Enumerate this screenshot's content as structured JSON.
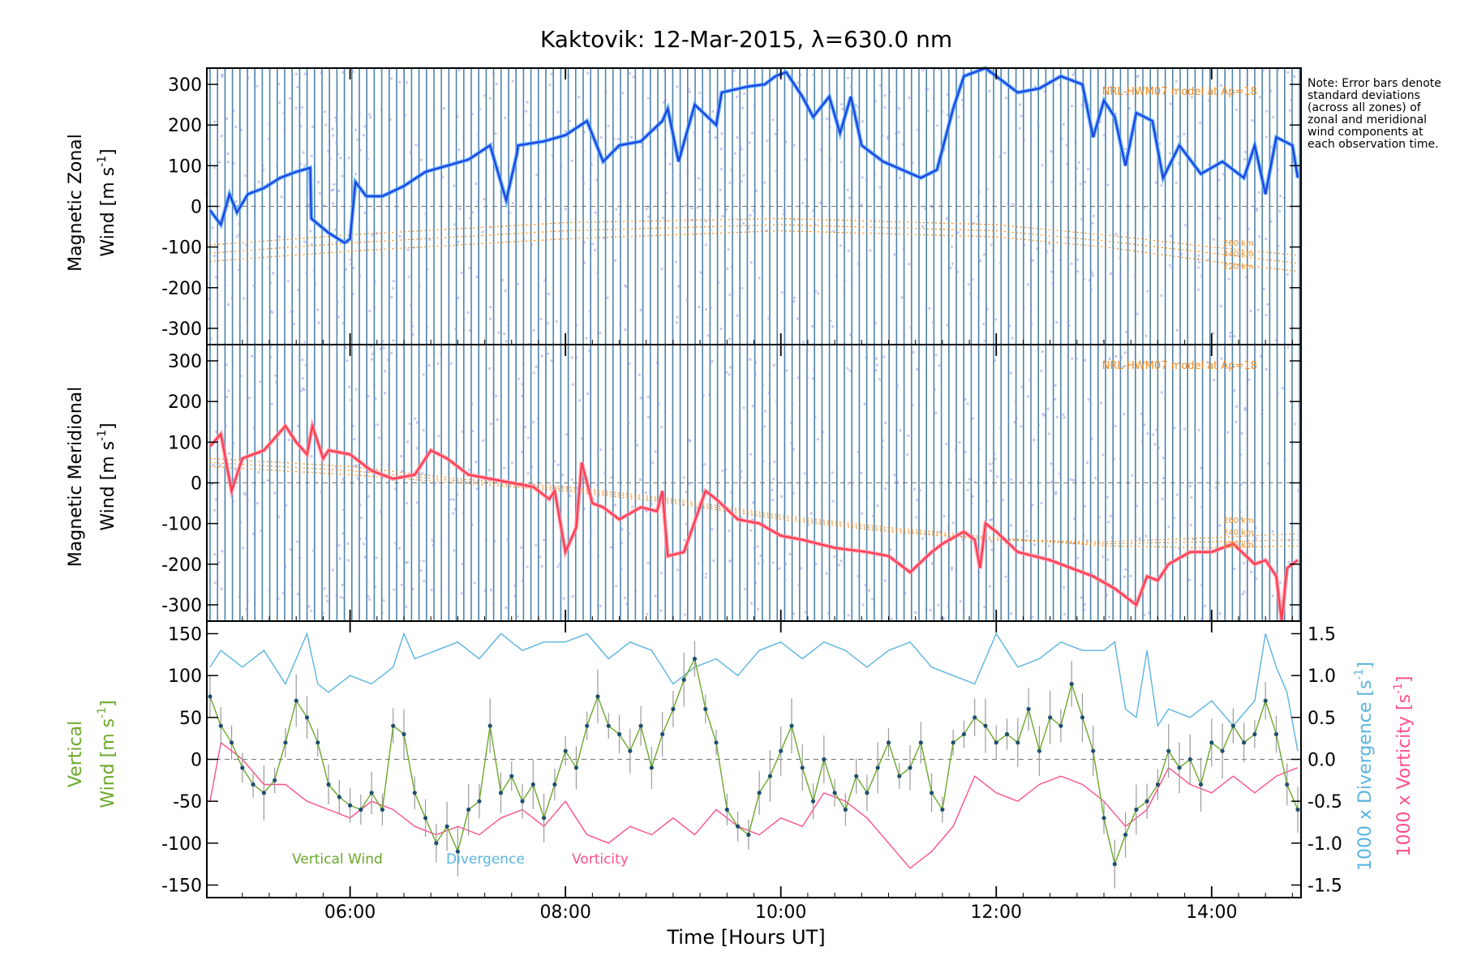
{
  "title": "Kaktovik: 12-Mar-2015, λ=630.0 nm",
  "note": "Note: Error bars denote standard deviations (across all zones) of zonal and meridional wind components at each observation time.",
  "colors": {
    "zonal": "#1f3fe0",
    "zonal_light": "#4aa8ff",
    "meridional": "#ff3b4f",
    "meridional_light": "#ff8fa3",
    "vertical": "#6aa829",
    "divergence": "#5ab4e0",
    "vorticity": "#ff4f8f",
    "model": "#f08a1c",
    "errorbar": "#9a9a9a",
    "dense_bars": "#2f6f9f"
  },
  "icons": {
    "vertical_marker": "dot-marker"
  },
  "chart_data": [
    {
      "type": "line",
      "panel": "zonal",
      "ylabel_line1": "Magnetic Zonal",
      "ylabel_line2": "Wind [m s",
      "ylabel_sup": "-1",
      "ylabel_end": "]",
      "yticks": [
        "-300",
        "-200",
        "-100",
        "0",
        "100",
        "200",
        "300"
      ],
      "ylim": [
        -340,
        340
      ],
      "xlim": [
        4.67,
        14.83
      ],
      "xticks": [
        6,
        8,
        10,
        12,
        14
      ],
      "model_label": "NRL-HWM07 model at Ap=18",
      "model_alt_labels": [
        "260 km",
        "240 km",
        "220 km"
      ],
      "model_curves": [
        {
          "name": "260 km",
          "x": [
            4.7,
            6,
            8,
            10,
            12,
            13,
            14,
            14.8
          ],
          "y": [
            -95,
            -70,
            -40,
            -30,
            -45,
            -70,
            -100,
            -120
          ]
        },
        {
          "name": "240 km",
          "x": [
            4.7,
            6,
            8,
            10,
            12,
            13,
            14,
            14.8
          ],
          "y": [
            -115,
            -90,
            -60,
            -45,
            -60,
            -85,
            -115,
            -140
          ]
        },
        {
          "name": "220 km",
          "x": [
            4.7,
            6,
            8,
            10,
            12,
            13,
            14,
            14.8
          ],
          "y": [
            -135,
            -110,
            -80,
            -60,
            -75,
            -100,
            -135,
            -160
          ]
        }
      ],
      "series": [
        {
          "name": "Zonal Wind",
          "x": [
            4.7,
            4.8,
            4.88,
            4.95,
            5.05,
            5.2,
            5.35,
            5.5,
            5.63,
            5.64,
            5.8,
            5.95,
            6.0,
            6.05,
            6.15,
            6.3,
            6.5,
            6.7,
            6.9,
            7.1,
            7.3,
            7.45,
            7.55,
            7.56,
            7.8,
            8.0,
            8.2,
            8.35,
            8.5,
            8.7,
            8.9,
            8.95,
            9.05,
            9.2,
            9.4,
            9.45,
            9.7,
            9.85,
            9.95,
            10.05,
            10.2,
            10.3,
            10.45,
            10.55,
            10.65,
            10.75,
            10.95,
            11.3,
            11.45,
            11.6,
            11.7,
            11.8,
            11.9,
            12.0,
            12.2,
            12.4,
            12.6,
            12.8,
            12.9,
            13.0,
            13.1,
            13.2,
            13.3,
            13.45,
            13.55,
            13.7,
            13.9,
            14.1,
            14.3,
            14.4,
            14.5,
            14.6,
            14.75,
            14.8
          ],
          "y": [
            -10,
            -45,
            30,
            -15,
            30,
            45,
            70,
            85,
            95,
            -30,
            -65,
            -90,
            -80,
            60,
            25,
            25,
            50,
            85,
            100,
            115,
            150,
            15,
            130,
            150,
            160,
            175,
            210,
            110,
            150,
            160,
            210,
            240,
            110,
            250,
            200,
            280,
            295,
            300,
            320,
            330,
            270,
            220,
            270,
            180,
            270,
            150,
            110,
            70,
            90,
            240,
            320,
            330,
            340,
            320,
            280,
            290,
            320,
            300,
            170,
            260,
            220,
            100,
            230,
            210,
            70,
            150,
            80,
            110,
            70,
            150,
            30,
            170,
            150,
            70
          ]
        }
      ]
    },
    {
      "type": "line",
      "panel": "meridional",
      "ylabel_line1": "Magnetic Meridional",
      "ylabel_line2": "Wind [m s",
      "ylabel_sup": "-1",
      "ylabel_end": "]",
      "yticks": [
        "-300",
        "-200",
        "-100",
        "0",
        "100",
        "200",
        "300"
      ],
      "ylim": [
        -340,
        340
      ],
      "xlim": [
        4.67,
        14.83
      ],
      "model_label": "NRL-HWM07 model at Ap=18",
      "model_alt_labels": [
        "260 km",
        "240 km",
        "220 km"
      ],
      "model_curves": [
        {
          "name": "260 km",
          "x": [
            4.7,
            6,
            7,
            8,
            9,
            10,
            11,
            12,
            13,
            14,
            14.8
          ],
          "y": [
            40,
            20,
            0,
            -20,
            -50,
            -90,
            -120,
            -140,
            -145,
            -135,
            -125
          ]
        },
        {
          "name": "240 km",
          "x": [
            4.7,
            6,
            7,
            8,
            9,
            10,
            11,
            12,
            13,
            14,
            14.8
          ],
          "y": [
            50,
            30,
            5,
            -15,
            -45,
            -85,
            -115,
            -140,
            -150,
            -145,
            -140
          ]
        },
        {
          "name": "220 km",
          "x": [
            4.7,
            6,
            7,
            8,
            9,
            10,
            11,
            12,
            13,
            14,
            14.8
          ],
          "y": [
            60,
            40,
            10,
            -10,
            -40,
            -80,
            -110,
            -135,
            -155,
            -160,
            -155
          ]
        }
      ],
      "series": [
        {
          "name": "Meridional Wind",
          "x": [
            4.7,
            4.8,
            4.9,
            5.0,
            5.2,
            5.4,
            5.5,
            5.6,
            5.65,
            5.75,
            5.8,
            6.0,
            6.2,
            6.4,
            6.6,
            6.75,
            6.9,
            7.1,
            7.3,
            7.5,
            7.7,
            7.85,
            7.9,
            8.0,
            8.1,
            8.15,
            8.25,
            8.35,
            8.5,
            8.7,
            8.85,
            8.9,
            8.95,
            9.1,
            9.3,
            9.4,
            9.6,
            9.8,
            10.0,
            10.2,
            10.5,
            10.8,
            11.0,
            11.2,
            11.4,
            11.5,
            11.7,
            11.8,
            11.85,
            11.9,
            12.0,
            12.2,
            12.5,
            12.7,
            12.9,
            13.1,
            13.3,
            13.4,
            13.5,
            13.6,
            13.8,
            14.0,
            14.2,
            14.4,
            14.5,
            14.6,
            14.65,
            14.7,
            14.8
          ],
          "y": [
            90,
            120,
            -20,
            60,
            80,
            140,
            100,
            70,
            140,
            60,
            80,
            70,
            30,
            10,
            20,
            80,
            60,
            20,
            10,
            0,
            -10,
            -40,
            -20,
            -170,
            -110,
            50,
            -50,
            -60,
            -90,
            -60,
            -70,
            -20,
            -180,
            -170,
            -20,
            -40,
            -90,
            -100,
            -130,
            -140,
            -160,
            -170,
            -180,
            -220,
            -170,
            -150,
            -120,
            -140,
            -210,
            -100,
            -120,
            -170,
            -190,
            -210,
            -230,
            -260,
            -300,
            -230,
            -240,
            -200,
            -170,
            -170,
            -150,
            -200,
            -190,
            -230,
            -340,
            -210,
            -190
          ]
        }
      ]
    },
    {
      "type": "line",
      "panel": "vertical",
      "ylabel_line1": "Vertical",
      "ylabel_line2": "Wind [m s",
      "ylabel_sup": "-1",
      "ylabel_end": "]",
      "yticks": [
        "-150",
        "-100",
        "-50",
        "0",
        "50",
        "100",
        "150"
      ],
      "ylim": [
        -165,
        165
      ],
      "xlim": [
        4.67,
        14.83
      ],
      "xtick_labels": [
        "06:00",
        "08:00",
        "10:00",
        "12:00",
        "14:00"
      ],
      "xlabel": "Time [Hours UT]",
      "right_axis": {
        "yticks": [
          "-1.5",
          "-1.0",
          "-0.5",
          "0.0",
          "0.5",
          "1.0",
          "1.5"
        ],
        "ylim": [
          -1.65,
          1.65
        ],
        "label_divergence": "1000 x Divergence [s",
        "label_vorticity": "1000 x Vorticity [s",
        "label_sup": "-1",
        "label_end": "]"
      },
      "legend": {
        "vertical": "Vertical Wind",
        "divergence": "Divergence",
        "vorticity": "Vorticity"
      },
      "series": [
        {
          "name": "Vertical Wind",
          "x": [
            4.7,
            4.8,
            4.9,
            5.0,
            5.1,
            5.2,
            5.3,
            5.4,
            5.5,
            5.6,
            5.7,
            5.8,
            5.9,
            6.0,
            6.1,
            6.2,
            6.3,
            6.4,
            6.5,
            6.6,
            6.7,
            6.8,
            6.9,
            7.0,
            7.1,
            7.2,
            7.3,
            7.4,
            7.5,
            7.6,
            7.7,
            7.8,
            7.9,
            8.0,
            8.1,
            8.2,
            8.3,
            8.4,
            8.5,
            8.6,
            8.7,
            8.8,
            8.9,
            9.0,
            9.1,
            9.2,
            9.3,
            9.4,
            9.5,
            9.6,
            9.7,
            9.8,
            9.9,
            10.0,
            10.1,
            10.2,
            10.3,
            10.4,
            10.5,
            10.6,
            10.7,
            10.8,
            10.9,
            11.0,
            11.1,
            11.2,
            11.3,
            11.4,
            11.5,
            11.6,
            11.7,
            11.8,
            11.9,
            12.0,
            12.1,
            12.2,
            12.3,
            12.4,
            12.5,
            12.6,
            12.7,
            12.8,
            12.9,
            13.0,
            13.1,
            13.2,
            13.3,
            13.4,
            13.5,
            13.6,
            13.7,
            13.8,
            13.9,
            14.0,
            14.1,
            14.2,
            14.3,
            14.4,
            14.5,
            14.6,
            14.7,
            14.8
          ],
          "y": [
            75,
            40,
            20,
            -10,
            -30,
            -40,
            -25,
            20,
            70,
            50,
            20,
            -30,
            -45,
            -55,
            -60,
            -40,
            -60,
            40,
            30,
            -40,
            -70,
            -100,
            -80,
            -110,
            -60,
            -50,
            40,
            -40,
            -20,
            -50,
            -30,
            -70,
            -30,
            10,
            -10,
            40,
            75,
            40,
            30,
            10,
            40,
            -10,
            30,
            60,
            95,
            120,
            60,
            20,
            -60,
            -80,
            -90,
            -40,
            -20,
            10,
            40,
            -10,
            -50,
            0,
            -40,
            -60,
            -20,
            -40,
            -10,
            20,
            -20,
            -10,
            20,
            -40,
            -60,
            20,
            30,
            50,
            40,
            20,
            30,
            20,
            60,
            10,
            50,
            40,
            90,
            50,
            10,
            -70,
            -125,
            -90,
            -60,
            -50,
            -30,
            10,
            -10,
            0,
            -30,
            20,
            10,
            40,
            20,
            30,
            70,
            30,
            -30,
            -60
          ]
        },
        {
          "name": "Divergence",
          "x": [
            4.7,
            4.8,
            5.0,
            5.2,
            5.4,
            5.5,
            5.6,
            5.7,
            5.8,
            6.0,
            6.2,
            6.4,
            6.5,
            6.6,
            6.8,
            7.0,
            7.2,
            7.4,
            7.6,
            7.8,
            8.0,
            8.2,
            8.4,
            8.6,
            8.8,
            9.0,
            9.2,
            9.4,
            9.6,
            9.8,
            10.0,
            10.2,
            10.4,
            10.6,
            10.8,
            11.0,
            11.2,
            11.4,
            11.6,
            11.8,
            12.0,
            12.2,
            12.4,
            12.6,
            12.8,
            13.0,
            13.1,
            13.2,
            13.3,
            13.4,
            13.5,
            13.6,
            13.8,
            14.0,
            14.2,
            14.4,
            14.5,
            14.6,
            14.7,
            14.8
          ],
          "y": [
            1.1,
            1.3,
            1.1,
            1.3,
            0.9,
            1.2,
            1.5,
            0.9,
            0.8,
            1.0,
            0.9,
            1.1,
            1.5,
            1.2,
            1.3,
            1.4,
            1.2,
            1.5,
            1.3,
            1.4,
            1.4,
            1.5,
            1.2,
            1.4,
            1.3,
            0.9,
            1.1,
            1.2,
            1.0,
            1.3,
            1.4,
            1.2,
            1.4,
            1.3,
            1.1,
            1.3,
            1.4,
            1.1,
            1.0,
            0.9,
            1.5,
            1.1,
            1.2,
            1.4,
            1.3,
            1.3,
            1.4,
            0.6,
            0.5,
            1.3,
            0.4,
            0.6,
            0.5,
            0.7,
            0.4,
            0.7,
            1.5,
            1.1,
            0.8,
            0.1
          ]
        },
        {
          "name": "Vorticity",
          "x": [
            4.7,
            4.8,
            5.0,
            5.2,
            5.4,
            5.6,
            5.8,
            6.0,
            6.2,
            6.4,
            6.6,
            6.8,
            7.0,
            7.2,
            7.4,
            7.6,
            7.8,
            8.0,
            8.2,
            8.4,
            8.6,
            8.8,
            9.0,
            9.2,
            9.4,
            9.6,
            9.8,
            10.0,
            10.2,
            10.4,
            10.6,
            10.8,
            11.0,
            11.2,
            11.4,
            11.6,
            11.8,
            12.0,
            12.2,
            12.4,
            12.6,
            12.8,
            13.0,
            13.2,
            13.4,
            13.6,
            13.8,
            14.0,
            14.2,
            14.4,
            14.6,
            14.8
          ],
          "y": [
            -0.5,
            0.2,
            0.0,
            -0.3,
            -0.3,
            -0.5,
            -0.6,
            -0.7,
            -0.5,
            -0.6,
            -0.8,
            -0.9,
            -0.8,
            -0.9,
            -0.7,
            -0.6,
            -0.8,
            -0.5,
            -0.9,
            -1.0,
            -0.8,
            -0.9,
            -0.7,
            -0.9,
            -0.6,
            -0.8,
            -0.9,
            -0.7,
            -0.8,
            -0.4,
            -0.5,
            -0.7,
            -1.0,
            -1.3,
            -1.1,
            -0.8,
            -0.2,
            -0.4,
            -0.5,
            -0.3,
            -0.2,
            -0.3,
            -0.5,
            -0.8,
            -0.6,
            -0.1,
            -0.3,
            -0.4,
            -0.2,
            -0.4,
            -0.2,
            -0.1
          ]
        }
      ]
    }
  ]
}
